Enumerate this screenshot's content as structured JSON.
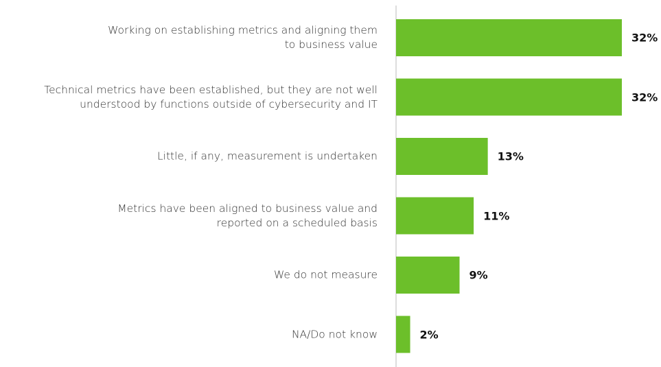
{
  "chart_data": {
    "type": "bar",
    "orientation": "horizontal",
    "categories": [
      "Working on establishing metrics and aligning them\nto business value",
      "Technical metrics have been established, but they are not well\nunderstood by functions outside of cybersecurity and IT",
      "Little, if any, measurement is undertaken",
      "Metrics have been aligned to business value and\nreported on a scheduled basis",
      "We do not measure",
      "NA/Do not know"
    ],
    "values": [
      32,
      32,
      13,
      11,
      9,
      2
    ],
    "value_labels": [
      "32%",
      "32%",
      "13%",
      "11%",
      "9%",
      "2%"
    ],
    "color": "#6cbf2a"
  }
}
